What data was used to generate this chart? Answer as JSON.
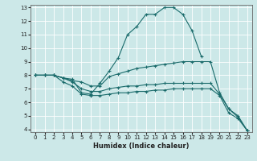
{
  "title": "",
  "xlabel": "Humidex (Indice chaleur)",
  "ylabel": "",
  "bg_color": "#cce8e8",
  "line_color": "#1a6b6b",
  "grid_color": "#ffffff",
  "xlim": [
    -0.5,
    23.5
  ],
  "ylim": [
    3.8,
    13.2
  ],
  "xticks": [
    0,
    1,
    2,
    3,
    4,
    5,
    6,
    7,
    8,
    9,
    10,
    11,
    12,
    13,
    14,
    15,
    16,
    17,
    18,
    19,
    20,
    21,
    22,
    23
  ],
  "yticks": [
    4,
    5,
    6,
    7,
    8,
    9,
    10,
    11,
    12,
    13
  ],
  "lines": [
    {
      "x": [
        0,
        1,
        2,
        3,
        4,
        5,
        6,
        7,
        8,
        9,
        10,
        11,
        12,
        13,
        14,
        15,
        16,
        17,
        18
      ],
      "y": [
        8,
        8,
        8,
        7.8,
        7.7,
        6.7,
        6.6,
        7.4,
        8.3,
        9.3,
        11.0,
        11.6,
        12.5,
        12.5,
        13.0,
        13.0,
        12.5,
        11.3,
        9.4
      ]
    },
    {
      "x": [
        0,
        1,
        2,
        3,
        4,
        5,
        6,
        7,
        8,
        9,
        10,
        11,
        12,
        13,
        14,
        15,
        16,
        17,
        18,
        19,
        20,
        21,
        22,
        23
      ],
      "y": [
        8,
        8,
        8,
        7.8,
        7.6,
        7.5,
        7.2,
        7.2,
        7.9,
        8.1,
        8.3,
        8.5,
        8.6,
        8.7,
        8.8,
        8.9,
        9.0,
        9.0,
        9.0,
        9.0,
        6.7,
        5.5,
        5.0,
        3.9
      ]
    },
    {
      "x": [
        0,
        1,
        2,
        3,
        4,
        5,
        6,
        7,
        8,
        9,
        10,
        11,
        12,
        13,
        14,
        15,
        16,
        17,
        18,
        19,
        20,
        21,
        22,
        23
      ],
      "y": [
        8,
        8,
        8,
        7.8,
        7.5,
        7.0,
        6.8,
        6.8,
        7.0,
        7.1,
        7.2,
        7.2,
        7.3,
        7.3,
        7.4,
        7.4,
        7.4,
        7.4,
        7.4,
        7.4,
        6.6,
        5.5,
        4.9,
        3.9
      ]
    },
    {
      "x": [
        0,
        1,
        2,
        3,
        4,
        5,
        6,
        7,
        8,
        9,
        10,
        11,
        12,
        13,
        14,
        15,
        16,
        17,
        18,
        19,
        20,
        21,
        22,
        23
      ],
      "y": [
        8,
        8,
        8,
        7.5,
        7.2,
        6.6,
        6.5,
        6.5,
        6.6,
        6.7,
        6.7,
        6.8,
        6.8,
        6.9,
        6.9,
        7.0,
        7.0,
        7.0,
        7.0,
        7.0,
        6.5,
        5.2,
        4.8,
        3.9
      ]
    }
  ],
  "xlabel_fontsize": 6.0,
  "tick_fontsize": 5.0,
  "marker_size": 3.5,
  "linewidth": 0.8
}
